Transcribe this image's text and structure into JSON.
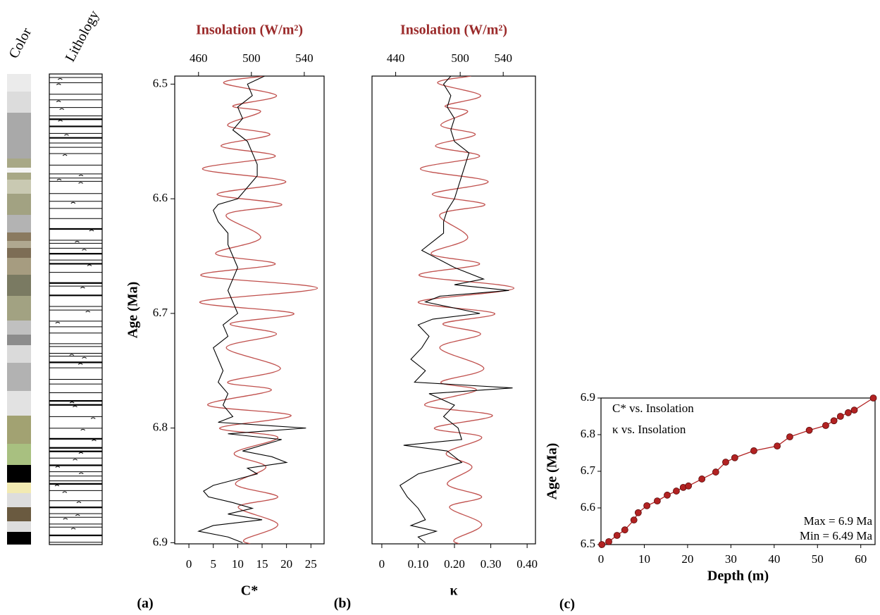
{
  "columns": {
    "color": "Color",
    "lithology": "Lithology"
  },
  "chart_data": [
    {
      "type": "profile",
      "panel_label": "(a)",
      "ylabel": "Age (Ma)",
      "xlabel": "C*",
      "x2label": "Insolation (W/m²)",
      "ylim": [
        6.493,
        6.901
      ],
      "y_inverted": true,
      "yticks": [
        6.5,
        6.6,
        6.7,
        6.8,
        6.9
      ],
      "xlim": [
        -2.9,
        27.7
      ],
      "xticks": [
        0,
        5,
        10,
        15,
        20,
        25
      ],
      "x2lim": [
        442,
        555
      ],
      "x2ticks": [
        460,
        500,
        540
      ],
      "series": [
        {
          "color": "#c0504d",
          "axis": "x2",
          "smooth": true,
          "y": [
            6.493,
            6.499,
            6.51,
            6.519,
            6.524,
            6.536,
            6.544,
            6.554,
            6.563,
            6.574,
            6.585,
            6.596,
            6.605,
            6.614,
            6.634,
            6.648,
            6.657,
            6.667,
            6.678,
            6.69,
            6.7,
            6.709,
            6.718,
            6.73,
            6.748,
            6.76,
            6.767,
            6.78,
            6.789,
            6.8,
            6.808,
            6.822,
            6.834,
            6.849,
            6.86,
            6.869,
            6.884,
            6.897,
            6.901
          ],
          "values": [
            510,
            479,
            519,
            486,
            507,
            482,
            514,
            477,
            518,
            463,
            526,
            474,
            523,
            481,
            507,
            473,
            518,
            462,
            550,
            461,
            532,
            484,
            519,
            481,
            522,
            482,
            515,
            467,
            530,
            476,
            520,
            487,
            511,
            488,
            520,
            490,
            520,
            495,
            499
          ]
        },
        {
          "color": "#000000",
          "y": [
            6.493,
            6.5,
            6.51,
            6.52,
            6.53,
            6.54,
            6.55,
            6.56,
            6.57,
            6.58,
            6.59,
            6.6,
            6.605,
            6.61,
            6.62,
            6.63,
            6.64,
            6.65,
            6.66,
            6.67,
            6.68,
            6.69,
            6.7,
            6.71,
            6.72,
            6.73,
            6.74,
            6.75,
            6.76,
            6.77,
            6.78,
            6.79,
            6.795,
            6.8,
            6.805,
            6.81,
            6.82,
            6.825,
            6.83,
            6.835,
            6.84,
            6.85,
            6.855,
            6.86,
            6.865,
            6.87,
            6.875,
            6.88,
            6.885,
            6.89,
            6.895,
            6.9
          ],
          "values": [
            15.5,
            12,
            13,
            10,
            11,
            9,
            12,
            13,
            14,
            14,
            12,
            10,
            6,
            5,
            6,
            8,
            8,
            9,
            10,
            9,
            8,
            9,
            10,
            7,
            8,
            5,
            6,
            7,
            6,
            8,
            7,
            9,
            6,
            24,
            8,
            19,
            11,
            17,
            20,
            12,
            14,
            5,
            3,
            4,
            9,
            13,
            8,
            15,
            5,
            2,
            8,
            11
          ]
        }
      ]
    },
    {
      "type": "profile",
      "panel_label": "(b)",
      "xlabel": "κ",
      "x2label": "Insolation (W/m²)",
      "ylim": [
        6.493,
        6.901
      ],
      "y_inverted": true,
      "xlim": [
        -0.027,
        0.423
      ],
      "xticks": [
        0,
        {
          "value": 0.1,
          "label": "0.10"
        },
        {
          "value": 0.2,
          "label": "0.20"
        },
        {
          "value": 0.3,
          "label": "0.30"
        },
        {
          "value": 0.4,
          "label": "0.40"
        }
      ],
      "x2lim": [
        418,
        570
      ],
      "x2ticks": [
        440,
        500,
        540
      ],
      "series": [
        {
          "color": "#c0504d",
          "axis": "x2",
          "smooth": true,
          "y": [
            6.493,
            6.499,
            6.51,
            6.519,
            6.524,
            6.536,
            6.544,
            6.554,
            6.563,
            6.574,
            6.585,
            6.596,
            6.605,
            6.614,
            6.634,
            6.648,
            6.657,
            6.667,
            6.678,
            6.69,
            6.7,
            6.709,
            6.718,
            6.73,
            6.748,
            6.76,
            6.767,
            6.78,
            6.789,
            6.8,
            6.808,
            6.822,
            6.834,
            6.849,
            6.86,
            6.869,
            6.884,
            6.897,
            6.901
          ],
          "values": [
            510,
            479,
            519,
            486,
            507,
            482,
            514,
            477,
            518,
            463,
            526,
            474,
            523,
            481,
            507,
            473,
            518,
            462,
            550,
            461,
            532,
            484,
            519,
            481,
            522,
            482,
            515,
            467,
            530,
            476,
            520,
            487,
            511,
            488,
            520,
            490,
            520,
            495,
            499
          ]
        },
        {
          "color": "#000000",
          "y": [
            6.493,
            6.5,
            6.51,
            6.52,
            6.53,
            6.54,
            6.55,
            6.56,
            6.57,
            6.58,
            6.59,
            6.6,
            6.61,
            6.62,
            6.63,
            6.64,
            6.645,
            6.65,
            6.66,
            6.67,
            6.675,
            6.68,
            6.685,
            6.69,
            6.7,
            6.705,
            6.71,
            6.72,
            6.73,
            6.74,
            6.75,
            6.76,
            6.765,
            6.77,
            6.78,
            6.79,
            6.8,
            6.81,
            6.815,
            6.82,
            6.83,
            6.84,
            6.85,
            6.86,
            6.87,
            6.88,
            6.885,
            6.89,
            6.895,
            6.9
          ],
          "values": [
            0.19,
            0.17,
            0.19,
            0.18,
            0.2,
            0.19,
            0.2,
            0.24,
            0.23,
            0.22,
            0.21,
            0.2,
            0.18,
            0.17,
            0.17,
            0.13,
            0.11,
            0.14,
            0.2,
            0.28,
            0.2,
            0.35,
            0.16,
            0.12,
            0.27,
            0.14,
            0.1,
            0.13,
            0.11,
            0.08,
            0.12,
            0.09,
            0.36,
            0.13,
            0.2,
            0.17,
            0.21,
            0.22,
            0.06,
            0.18,
            0.22,
            0.1,
            0.05,
            0.07,
            0.1,
            0.12,
            0.08,
            0.15,
            0.1,
            0.12
          ]
        }
      ]
    },
    {
      "type": "line",
      "panel_label": "(c)",
      "xlabel": "Depth (m)",
      "ylabel": "Age (Ma)",
      "xlim": [
        0,
        63.3
      ],
      "xticks": [
        0,
        10,
        20,
        30,
        40,
        50,
        60
      ],
      "ylim": [
        6.5,
        6.9
      ],
      "yticks": [
        6.5,
        6.6,
        6.7,
        6.8,
        6.9
      ],
      "legend_labels": [
        "C* vs. Insolation",
        "κ vs. Insolation"
      ],
      "annotations": [
        "Max = 6.9 Ma",
        "Min = 6.49 Ma"
      ],
      "series": [
        {
          "color": "#b22222",
          "markers": true,
          "x": [
            0.2,
            1.8,
            3.7,
            5.5,
            7.6,
            8.6,
            10.6,
            13.0,
            15.3,
            17.4,
            19.0,
            20.2,
            23.3,
            26.5,
            28.8,
            30.9,
            35.3,
            40.7,
            43.6,
            48.1,
            51.9,
            53.8,
            55.3,
            57.1,
            58.5,
            62.9
          ],
          "values": [
            6.5,
            6.508,
            6.525,
            6.54,
            6.567,
            6.587,
            6.606,
            6.619,
            6.635,
            6.646,
            6.656,
            6.66,
            6.679,
            6.698,
            6.725,
            6.737,
            6.756,
            6.769,
            6.794,
            6.812,
            6.825,
            6.838,
            6.85,
            6.86,
            6.867,
            6.9
          ]
        }
      ]
    }
  ]
}
